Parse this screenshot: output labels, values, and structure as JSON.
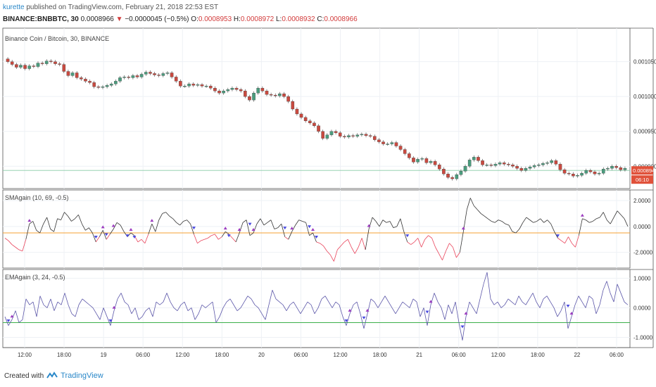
{
  "header": {
    "author": "kurette",
    "published_text": "published on TradingView.com, February 21, 2018 22:53 EST",
    "symbol": "BINANCE:BNBBTC, 30",
    "last": "0.0008966",
    "change": "−0.0000045 (−0.5%)",
    "o_label": "O:",
    "o_value": "0.0008953",
    "h_label": "H:",
    "h_value": "0.0008972",
    "l_label": "L:",
    "l_value": "0.0008932",
    "c_label": "C:",
    "c_value": "0.0008966"
  },
  "main_pane": {
    "title": "Binance Coin / Bitcoin, 30, BINANCE",
    "price_ticks": [
      "0.0010500",
      "0.0010000",
      "0.0009500",
      "0.0009000"
    ],
    "price_tag": "0.0008940",
    "time_tag": "06:10"
  },
  "sma_pane": {
    "title": "SMAgain (10, 69, -0.5)",
    "ticks": [
      "2.0000",
      "0.0000",
      "-2.0000"
    ]
  },
  "ema_pane": {
    "title": "EMAgain (3, 24, -0.5)",
    "ticks": [
      "1.0000",
      "0.0000",
      "-1.0000"
    ]
  },
  "time_axis": [
    "12:00",
    "18:00",
    "19",
    "06:00",
    "12:00",
    "18:00",
    "20",
    "06:00",
    "12:00",
    "18:00",
    "21",
    "06:00",
    "12:00",
    "18:00",
    "22",
    "06:00"
  ],
  "footer": {
    "created_with": "Created with",
    "brand": "TradingView"
  },
  "colors": {
    "up": "#4a9d7e",
    "down": "#c94a40",
    "sma_pos": "#333333",
    "sma_neg": "#e9435a",
    "ema": "#5a55a8",
    "orange": "#f5a033",
    "green": "#3cb04a",
    "marker_up": "#9c3cc0",
    "marker_down": "#4a4ae0",
    "grid": "#eef1f5",
    "tag": "#e0513a"
  },
  "chart_data": [
    {
      "type": "candlestick",
      "title": "Binance Coin / Bitcoin, 30, BINANCE",
      "ylim": [
        0.000872,
        0.00109
      ],
      "x_ticks": [
        "12:00",
        "18:00",
        "19",
        "06:00",
        "12:00",
        "18:00",
        "20",
        "06:00",
        "12:00",
        "18:00",
        "21",
        "06:00",
        "12:00",
        "18:00",
        "22",
        "06:00"
      ],
      "close": [
        0.00105,
        0.001046,
        0.001042,
        0.001045,
        0.00104,
        0.001044,
        0.001043,
        0.001048,
        0.001047,
        0.001051,
        0.00105,
        0.001047,
        0.001046,
        0.001036,
        0.00103,
        0.001034,
        0.001027,
        0.001025,
        0.001022,
        0.00102,
        0.001014,
        0.001013,
        0.001014,
        0.001016,
        0.001018,
        0.001022,
        0.001027,
        0.001028,
        0.001027,
        0.00103,
        0.001028,
        0.001032,
        0.001035,
        0.001033,
        0.001031,
        0.00103,
        0.001033,
        0.001034,
        0.001028,
        0.001022,
        0.001015,
        0.001015,
        0.001018,
        0.001016,
        0.001017,
        0.001015,
        0.001015,
        0.001012,
        0.001008,
        0.001005,
        0.001008,
        0.00101,
        0.001012,
        0.00101,
        0.001008,
        0.001,
        0.000995,
        0.001005,
        0.001012,
        0.001008,
        0.001003,
        0.001002,
        0.001001,
        0.001004,
        0.001,
        0.000993,
        0.000982,
        0.000975,
        0.00097,
        0.000965,
        0.000962,
        0.000958,
        0.00095,
        0.00094,
        0.000945,
        0.00095,
        0.000948,
        0.000943,
        0.000942,
        0.000944,
        0.000943,
        0.000945,
        0.000946,
        0.000944,
        0.000943,
        0.000938,
        0.000935,
        0.000932,
        0.000932,
        0.000934,
        0.000929,
        0.000924,
        0.000918,
        0.000912,
        0.000906,
        0.00091,
        0.000911,
        0.000905,
        0.000907,
        0.000902,
        0.000896,
        0.000889,
        0.000884,
        0.000882,
        0.000888,
        0.000893,
        0.0009,
        0.000909,
        0.000913,
        0.000908,
        0.000902,
        0.000902,
        0.000901,
        0.000903,
        0.000905,
        0.000903,
        0.000902,
        0.0009,
        0.000897,
        0.000894,
        0.000897,
        0.000899,
        0.000901,
        0.000902,
        0.000904,
        0.000905,
        0.000908,
        0.000903,
        0.000895,
        0.00089,
        0.000889,
        0.000886,
        0.000887,
        0.00089,
        0.000894,
        0.000892,
        0.000889,
        0.00089,
        0.000896,
        0.000897,
        0.0009,
        0.000898,
        0.000895,
        0.000897
      ]
    },
    {
      "type": "line",
      "title": "SMAgain (10, 69, -0.5)",
      "ylim": [
        -3.0,
        2.6
      ],
      "threshold": -0.5,
      "values": [
        -0.9,
        -1.1,
        -1.4,
        -1.6,
        -1.8,
        -1.9,
        -1.0,
        0.2,
        0.4,
        -0.3,
        -0.5,
        0.2,
        0.7,
        -0.2,
        -0.4,
        0.6,
        0.5,
        1.1,
        0.8,
        0.4,
        0.6,
        0.9,
        0.2,
        -0.3,
        -0.1,
        -0.5,
        -1.2,
        -0.8,
        -0.3,
        -1.0,
        -0.6,
        -0.2,
        0.3,
        0.1,
        -0.4,
        -0.8,
        -0.5,
        -0.7,
        -1.2,
        -1.0,
        -1.3,
        -0.6,
        0.2,
        -0.4,
        0.5,
        1.0,
        1.1,
        0.8,
        0.6,
        0.3,
        0.1,
        0.4,
        0.5,
        0.2,
        -0.6,
        -1.3,
        -1.1,
        -1.0,
        -0.9,
        -0.7,
        -0.6,
        -1.0,
        -0.8,
        -0.4,
        -0.6,
        -0.9,
        -1.2,
        -0.5,
        0.3,
        0.5,
        -0.7,
        -0.5,
        0.2,
        0.6,
        0.1,
        0.3,
        0.5,
        -0.2,
        -0.1,
        0.2,
        -0.8,
        -1.0,
        -0.4,
        0.1,
        0.5,
        0.4,
        0.3,
        -0.7,
        -0.5,
        -1.2,
        -1.3,
        -1.5,
        -1.9,
        -2.2,
        -2.7,
        -1.8,
        -1.5,
        -1.2,
        -1.0,
        -1.6,
        -2.1,
        -1.6,
        -0.9,
        -1.8,
        -0.2,
        0.7,
        0.4,
        0.0,
        0.5,
        0.3,
        0.4,
        -0.1,
        0.0,
        0.6,
        -0.4,
        -1.2,
        -1.4,
        -1.2,
        -0.9,
        -1.6,
        -1.0,
        -0.7,
        -0.9,
        -1.6,
        -2.1,
        -2.6,
        -1.9,
        -1.3,
        -1.6,
        -2.4,
        -2.0,
        -0.4,
        1.3,
        2.2,
        1.6,
        1.3,
        1.0,
        0.8,
        0.6,
        0.4,
        0.3,
        0.5,
        0.4,
        0.2,
        0.1,
        -0.4,
        -0.5,
        -0.2,
        0.3,
        0.7,
        0.5,
        0.3,
        0.4,
        0.6,
        0.3,
        0.5,
        0.2,
        -0.4,
        -0.9,
        -1.1,
        -1.3,
        -0.8,
        -1.3,
        -1.6,
        -0.7,
        0.6,
        0.5,
        0.3,
        0.4,
        0.6,
        0.7,
        1.1,
        0.5,
        0.2,
        0.7,
        1.2,
        0.9,
        0.6,
        0.0
      ]
    },
    {
      "type": "line",
      "title": "EMAgain (3, 24, -0.5)",
      "ylim": [
        -1.25,
        1.2
      ],
      "threshold": -0.5,
      "values": [
        -0.3,
        -0.6,
        -0.4,
        -0.1,
        -0.5,
        -0.4,
        0.3,
        0.1,
        0.2,
        -0.3,
        0.4,
        0.1,
        0.0,
        0.3,
        -0.1,
        0.2,
        0.1,
        0.5,
        0.1,
        -0.2,
        -0.3,
        0.1,
        0.3,
        0.2,
        0.1,
        0.0,
        -0.2,
        -0.4,
        0.0,
        -0.3,
        -0.6,
        -0.1,
        0.3,
        0.5,
        0.2,
        0.1,
        -0.2,
        0.0,
        -0.4,
        -0.3,
        -0.1,
        0.0,
        -0.3,
        0.2,
        0.1,
        0.2,
        0.5,
        0.2,
        0.0,
        -0.1,
        0.1,
        0.2,
        -0.1,
        0.0,
        -0.4,
        -0.2,
        0.1,
        0.0,
        0.1,
        0.2,
        -0.5,
        -0.3,
        0.0,
        0.2,
        0.3,
        0.1,
        -0.1,
        0.0,
        0.2,
        0.4,
        0.3,
        0.1,
        0.0,
        -0.2,
        -0.4,
        0.1,
        0.6,
        0.3,
        0.2,
        0.1,
        -0.1,
        0.1,
        0.2,
        0.0,
        -0.2,
        0.0,
        0.2,
        0.1,
        -0.2,
        0.0,
        0.3,
        0.4,
        0.2,
        0.0,
        0.2,
        0.1,
        -0.3,
        -0.6,
        -0.2,
        0.1,
        0.2,
        -0.2,
        -0.7,
        -0.2,
        0.3,
        0.2,
        0.0,
        0.2,
        0.4,
        0.2,
        0.0,
        -0.2,
        0.0,
        0.2,
        0.1,
        0.0,
        0.3,
        0.2,
        -0.3,
        0.0,
        -0.6,
        0.1,
        0.5,
        0.2,
        0.0,
        -0.4,
        0.1,
        -0.2,
        0.2,
        -0.5,
        -1.1,
        -0.3,
        0.2,
        0.0,
        -0.2,
        0.3,
        0.8,
        1.2,
        0.3,
        0.1,
        0.2,
        0.0,
        0.1,
        0.3,
        0.2,
        0.1,
        0.4,
        0.2,
        0.1,
        0.3,
        0.5,
        0.2,
        0.0,
        0.3,
        0.4,
        0.2,
        0.0,
        -0.3,
        -0.1,
        0.2,
        -0.7,
        -0.3,
        0.1,
        0.4,
        0.2,
        0.0,
        0.4,
        0.3,
        -0.2,
        0.1,
        0.6,
        0.9,
        0.5,
        0.2,
        0.8,
        0.5,
        0.2,
        0.1
      ]
    }
  ]
}
